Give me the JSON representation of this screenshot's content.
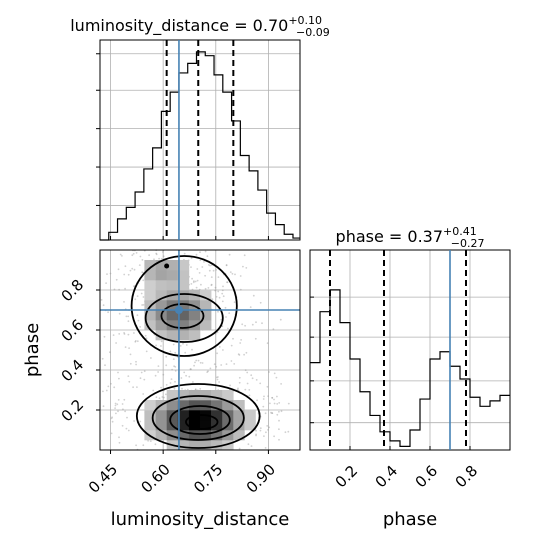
{
  "chart_data": [
    {
      "type": "histogram",
      "panel": "luminosity_distance_marginal",
      "title_text": "luminosity_distance = 0.70",
      "title_sup": "+0.10",
      "title_sub": "−0.09",
      "xlim": [
        0.42,
        0.99
      ],
      "grid": true,
      "bins": [
        {
          "x0": 0.42,
          "x1": 0.445,
          "h": 0.0
        },
        {
          "x0": 0.445,
          "x1": 0.47,
          "h": 0.04
        },
        {
          "x0": 0.47,
          "x1": 0.495,
          "h": 0.11
        },
        {
          "x0": 0.495,
          "x1": 0.52,
          "h": 0.17
        },
        {
          "x0": 0.52,
          "x1": 0.545,
          "h": 0.25
        },
        {
          "x0": 0.545,
          "x1": 0.57,
          "h": 0.37
        },
        {
          "x0": 0.57,
          "x1": 0.595,
          "h": 0.48
        },
        {
          "x0": 0.595,
          "x1": 0.62,
          "h": 0.67
        },
        {
          "x0": 0.62,
          "x1": 0.645,
          "h": 0.77
        },
        {
          "x0": 0.645,
          "x1": 0.67,
          "h": 0.87
        },
        {
          "x0": 0.67,
          "x1": 0.695,
          "h": 0.92
        },
        {
          "x0": 0.695,
          "x1": 0.72,
          "h": 0.98
        },
        {
          "x0": 0.72,
          "x1": 0.745,
          "h": 0.96
        },
        {
          "x0": 0.745,
          "x1": 0.77,
          "h": 0.86
        },
        {
          "x0": 0.77,
          "x1": 0.795,
          "h": 0.77
        },
        {
          "x0": 0.795,
          "x1": 0.82,
          "h": 0.62
        },
        {
          "x0": 0.82,
          "x1": 0.845,
          "h": 0.44
        },
        {
          "x0": 0.845,
          "x1": 0.87,
          "h": 0.36
        },
        {
          "x0": 0.87,
          "x1": 0.895,
          "h": 0.26
        },
        {
          "x0": 0.895,
          "x1": 0.92,
          "h": 0.14
        },
        {
          "x0": 0.92,
          "x1": 0.945,
          "h": 0.08
        },
        {
          "x0": 0.945,
          "x1": 0.97,
          "h": 0.03
        },
        {
          "x0": 0.97,
          "x1": 0.99,
          "h": 0.01
        }
      ],
      "quantiles": [
        0.61,
        0.7,
        0.8
      ],
      "truth": 0.645
    },
    {
      "type": "histogram",
      "panel": "phase_marginal",
      "title_text": "phase = 0.37",
      "title_sup": "+0.41",
      "title_sub": "−0.27",
      "xlim": [
        0.0,
        1.0
      ],
      "xticks": [
        "0.2",
        "0.4",
        "0.6",
        "0.8"
      ],
      "grid": true,
      "bins": [
        {
          "x0": 0.0,
          "x1": 0.05,
          "h": 0.48
        },
        {
          "x0": 0.05,
          "x1": 0.1,
          "h": 0.76
        },
        {
          "x0": 0.1,
          "x1": 0.15,
          "h": 0.88
        },
        {
          "x0": 0.15,
          "x1": 0.2,
          "h": 0.7
        },
        {
          "x0": 0.2,
          "x1": 0.25,
          "h": 0.5
        },
        {
          "x0": 0.25,
          "x1": 0.3,
          "h": 0.32
        },
        {
          "x0": 0.3,
          "x1": 0.35,
          "h": 0.19
        },
        {
          "x0": 0.35,
          "x1": 0.4,
          "h": 0.1
        },
        {
          "x0": 0.4,
          "x1": 0.45,
          "h": 0.05
        },
        {
          "x0": 0.45,
          "x1": 0.5,
          "h": 0.02
        },
        {
          "x0": 0.5,
          "x1": 0.55,
          "h": 0.11
        },
        {
          "x0": 0.55,
          "x1": 0.6,
          "h": 0.28
        },
        {
          "x0": 0.6,
          "x1": 0.65,
          "h": 0.5
        },
        {
          "x0": 0.65,
          "x1": 0.7,
          "h": 0.54
        },
        {
          "x0": 0.7,
          "x1": 0.75,
          "h": 0.46
        },
        {
          "x0": 0.75,
          "x1": 0.8,
          "h": 0.39
        },
        {
          "x0": 0.8,
          "x1": 0.85,
          "h": 0.29
        },
        {
          "x0": 0.85,
          "x1": 0.9,
          "h": 0.24
        },
        {
          "x0": 0.9,
          "x1": 0.95,
          "h": 0.27
        },
        {
          "x0": 0.95,
          "x1": 1.0,
          "h": 0.3
        }
      ],
      "quantiles": [
        0.1,
        0.37,
        0.78
      ],
      "truth": 0.7,
      "xlabel": "phase"
    },
    {
      "type": "heatmap",
      "panel": "joint_2d",
      "xlabel": "luminosity_distance",
      "ylabel": "phase",
      "xlim": [
        0.42,
        0.99
      ],
      "ylim": [
        0.0,
        1.0
      ],
      "xticks": [
        "0.45",
        "0.60",
        "0.75",
        "0.90"
      ],
      "yticks": [
        "0.2",
        "0.4",
        "0.6",
        "0.8"
      ],
      "truth": {
        "x": 0.645,
        "y": 0.7
      },
      "modes": [
        {
          "cx": 0.7,
          "cy": 0.15,
          "sx": 0.075,
          "sy": 0.075,
          "w": 1.0
        },
        {
          "cx": 0.645,
          "cy": 0.68,
          "sx": 0.06,
          "sy": 0.08,
          "w": 0.55
        },
        {
          "cx": 0.6,
          "cy": 0.9,
          "sx": 0.05,
          "sy": 0.05,
          "w": 0.3
        }
      ],
      "contours": [
        {
          "level": "outer-low",
          "cx": 0.7,
          "cy": 0.17,
          "rx": 0.175,
          "ry": 0.16
        },
        {
          "level": "mid-low",
          "cx": 0.7,
          "cy": 0.16,
          "rx": 0.13,
          "ry": 0.11
        },
        {
          "level": "inner-low",
          "cx": 0.705,
          "cy": 0.15,
          "rx": 0.085,
          "ry": 0.07
        },
        {
          "level": "core-low",
          "cx": 0.71,
          "cy": 0.14,
          "rx": 0.045,
          "ry": 0.035
        },
        {
          "level": "outer-high",
          "cx": 0.66,
          "cy": 0.72,
          "rx": 0.15,
          "ry": 0.25
        },
        {
          "level": "mid-high",
          "cx": 0.66,
          "cy": 0.66,
          "rx": 0.11,
          "ry": 0.12
        },
        {
          "level": "inner-high",
          "cx": 0.655,
          "cy": 0.67,
          "rx": 0.06,
          "ry": 0.06
        }
      ]
    }
  ]
}
